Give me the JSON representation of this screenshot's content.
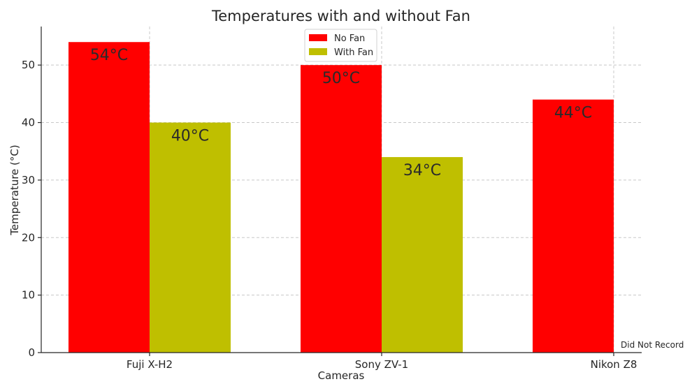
{
  "chart_data": {
    "type": "bar",
    "title": "Temperatures with and without Fan",
    "xlabel": "Cameras",
    "ylabel": "Temperature (°C)",
    "categories": [
      "Fuji X-H2",
      "Sony ZV-1",
      "Nikon Z8"
    ],
    "series": [
      {
        "name": "No Fan",
        "values": [
          54,
          50,
          44
        ],
        "labels": [
          "54°C",
          "50°C",
          "44°C"
        ],
        "color": "#ff0000"
      },
      {
        "name": "With Fan",
        "values": [
          40,
          34,
          null
        ],
        "labels": [
          "40°C",
          "34°C",
          ""
        ],
        "color": "#bfbf00"
      }
    ],
    "ylim": [
      0,
      56.7
    ],
    "yticks": [
      0,
      10,
      20,
      30,
      40,
      50
    ],
    "grid": true,
    "legend_position": "top-center",
    "annotations": [
      {
        "text": "Did Not Record",
        "category": "Nikon Z8"
      }
    ]
  }
}
